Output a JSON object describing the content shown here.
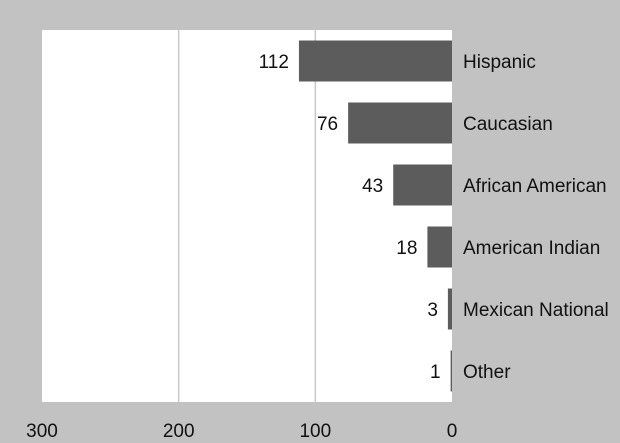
{
  "chart_data": {
    "type": "bar",
    "orientation": "horizontal",
    "x_direction": "reversed",
    "categories": [
      "Hispanic",
      "Caucasian",
      "African American",
      "American Indian",
      "Mexican National",
      "Other"
    ],
    "values": [
      112,
      76,
      43,
      18,
      3,
      1
    ],
    "value_labels": [
      "112",
      "76",
      "43",
      "18",
      "3",
      "1"
    ],
    "xlim": [
      0,
      300
    ],
    "xticks": [
      300,
      200,
      100,
      0
    ],
    "xtick_labels": [
      "300",
      "200",
      "100",
      "0"
    ],
    "grid": "vertical",
    "title": "",
    "xlabel": "",
    "ylabel": "",
    "colors": {
      "bar": "#5c5c5c",
      "plot_background": "#ffffff",
      "page_background": "#c2c2c2",
      "gridline": "#c9c9c9",
      "text": "#111111"
    }
  }
}
